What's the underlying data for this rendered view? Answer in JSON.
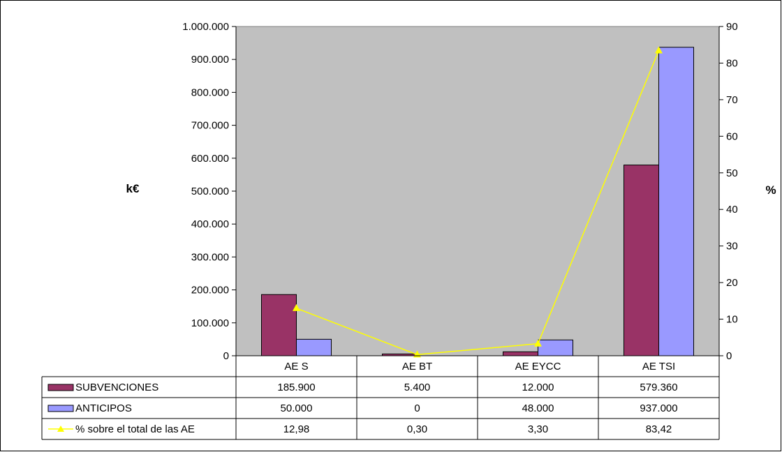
{
  "chart_data": {
    "type": "bar",
    "categories": [
      "AE S",
      "AE BT",
      "AE EYCC",
      "AE TSI"
    ],
    "ylabel": "k€",
    "y2label": "%",
    "ylim": [
      0,
      1000000
    ],
    "y2lim": [
      0,
      90
    ],
    "y_ticks": [
      "0",
      "100.000",
      "200.000",
      "300.000",
      "400.000",
      "500.000",
      "600.000",
      "700.000",
      "800.000",
      "900.000",
      "1.000.000"
    ],
    "y2_ticks": [
      "0",
      "10",
      "20",
      "30",
      "40",
      "50",
      "60",
      "70",
      "80",
      "90"
    ],
    "series": [
      {
        "name": "SUBVENCIONES",
        "kind": "bar",
        "axis": "left",
        "color": "#993366",
        "values": [
          185900,
          5400,
          12000,
          579360
        ],
        "labels": [
          "185.900",
          "5.400",
          "12.000",
          "579.360"
        ]
      },
      {
        "name": "ANTICIPOS",
        "kind": "bar",
        "axis": "left",
        "color": "#9999ff",
        "values": [
          50000,
          0,
          48000,
          937000
        ],
        "labels": [
          "50.000",
          "0",
          "48.000",
          "937.000"
        ]
      },
      {
        "name": "% sobre el total de las AE",
        "kind": "line",
        "axis": "right",
        "color": "#ffff00",
        "marker": "triangle",
        "values": [
          12.98,
          0.3,
          3.3,
          83.42
        ],
        "labels": [
          "12,98",
          "0,30",
          "3,30",
          "83,42"
        ]
      }
    ],
    "plot_background": "#c0c0c0",
    "legend": "data table below chart"
  }
}
